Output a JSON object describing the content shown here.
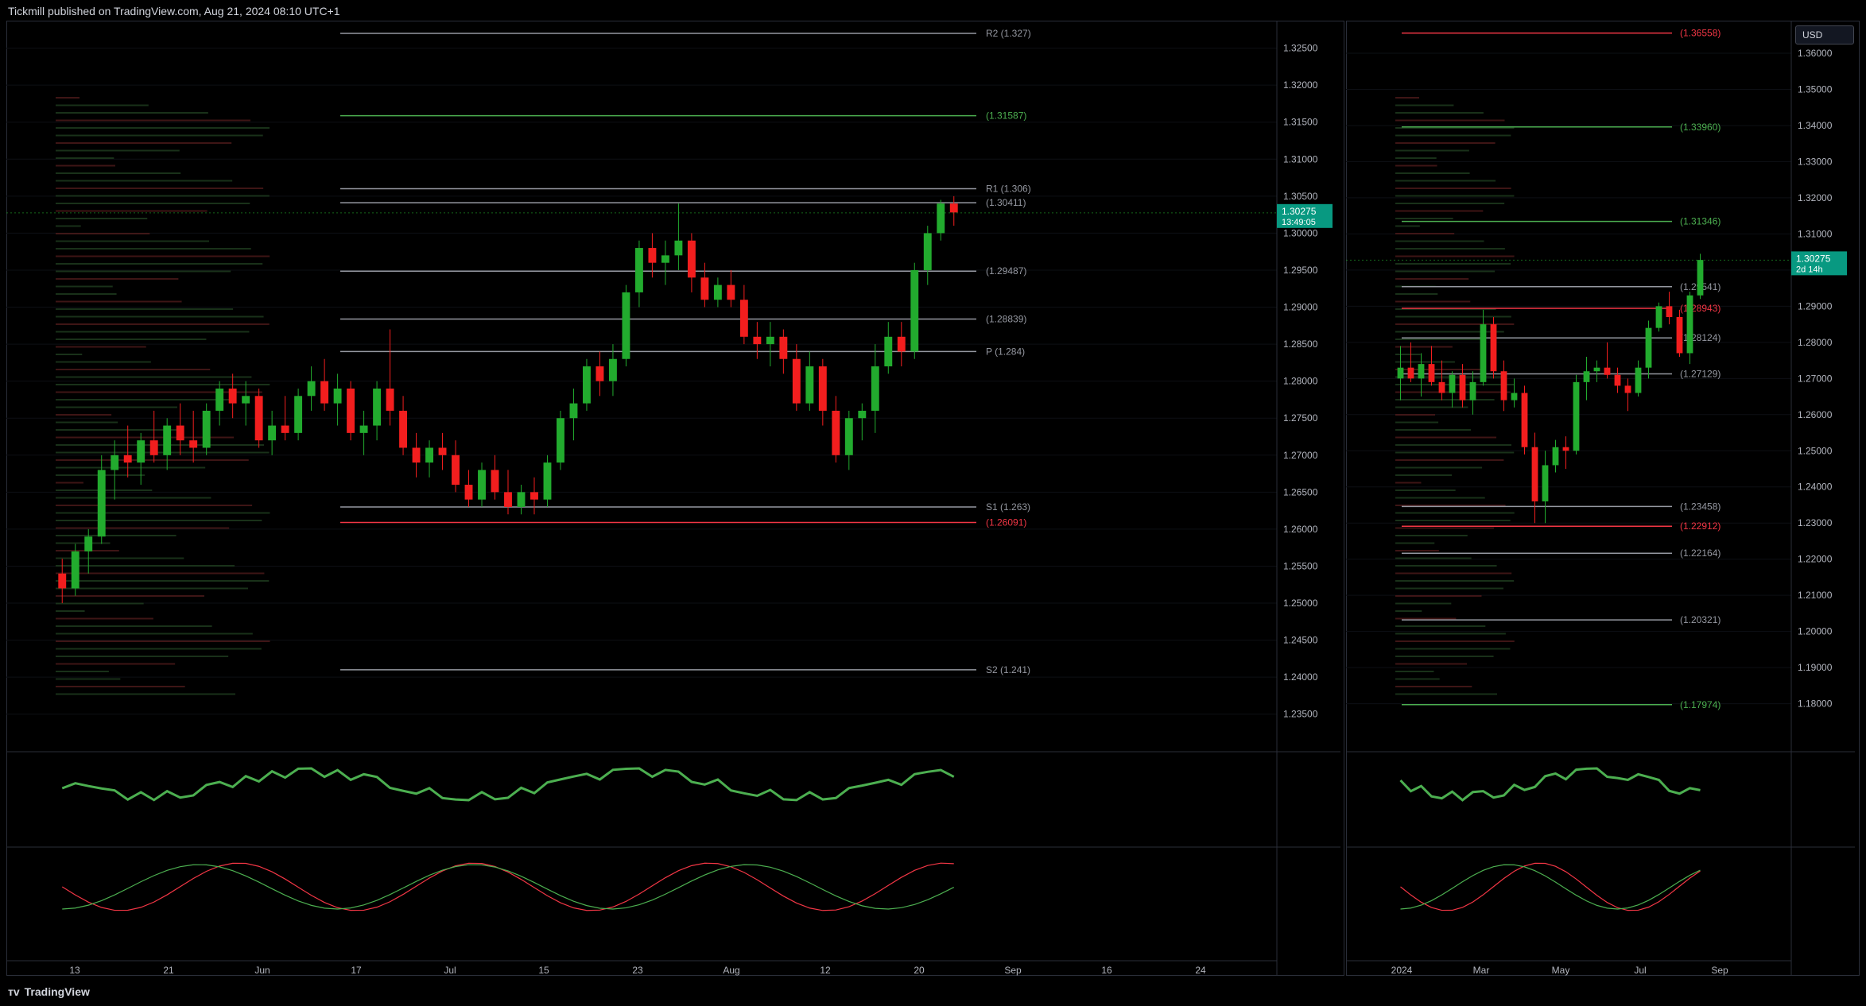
{
  "header": {
    "text": "Tickmill published on TradingView.com, Aug 21, 2024 08:10 UTC+1"
  },
  "footer": {
    "brand": "TradingView"
  },
  "currency_button": "USD",
  "colors": {
    "up": "#22ab2e",
    "down": "#f21e1e",
    "grid": "#1e222d",
    "axis_text": "#b2b5be",
    "green_line": "#4caf50",
    "red_line": "#f23645",
    "orange": "#ff9800",
    "blue": "#2962ff",
    "purple": "#9c27b0"
  },
  "chart_data": [
    {
      "type": "candlestick",
      "panel": "left-daily",
      "y_axis_ticks": [
        "1.32500",
        "1.32000",
        "1.31500",
        "1.31000",
        "1.30500",
        "1.30000",
        "1.29500",
        "1.29000",
        "1.28500",
        "1.28000",
        "1.27500",
        "1.27000",
        "1.26500",
        "1.26000",
        "1.25500",
        "1.25000",
        "1.24500",
        "1.24000",
        "1.23500"
      ],
      "ylim": [
        1.2325,
        1.327
      ],
      "x_axis_ticks": [
        "13",
        "21",
        "Jun",
        "17",
        "Jul",
        "15",
        "23",
        "Aug",
        "12",
        "20",
        "Sep",
        "16",
        "24"
      ],
      "last_price": "1.30275",
      "countdown": "13:49:05",
      "levels": [
        {
          "label": "(1.31587)",
          "value": 1.31587,
          "color": "#4caf50"
        },
        {
          "label": "R1 (1.306)",
          "value": 1.306,
          "color": "#9598a1"
        },
        {
          "label": "(1.30411)",
          "value": 1.30411,
          "color": "#9598a1"
        },
        {
          "label": "(1.29487)",
          "value": 1.29487,
          "color": "#9598a1"
        },
        {
          "label": "(1.28839)",
          "value": 1.28839,
          "color": "#9598a1"
        },
        {
          "label": "P (1.284)",
          "value": 1.284,
          "color": "#9598a1"
        },
        {
          "label": "S1 (1.263)",
          "value": 1.263,
          "color": "#9598a1"
        },
        {
          "label": "(1.26091)",
          "value": 1.26091,
          "color": "#f23645"
        },
        {
          "label": "S2 (1.241)",
          "value": 1.241,
          "color": "#9598a1"
        },
        {
          "label": "R2 (1.327)",
          "value": 1.327,
          "color": "#9598a1"
        }
      ],
      "candles": [
        [
          1.254,
          1.256,
          1.25,
          1.252
        ],
        [
          1.252,
          1.258,
          1.251,
          1.257
        ],
        [
          1.257,
          1.26,
          1.254,
          1.259
        ],
        [
          1.259,
          1.27,
          1.258,
          1.268
        ],
        [
          1.268,
          1.272,
          1.264,
          1.27
        ],
        [
          1.27,
          1.274,
          1.267,
          1.269
        ],
        [
          1.269,
          1.273,
          1.266,
          1.272
        ],
        [
          1.272,
          1.276,
          1.269,
          1.27
        ],
        [
          1.27,
          1.275,
          1.268,
          1.274
        ],
        [
          1.274,
          1.277,
          1.27,
          1.272
        ],
        [
          1.272,
          1.276,
          1.269,
          1.271
        ],
        [
          1.271,
          1.277,
          1.27,
          1.276
        ],
        [
          1.276,
          1.28,
          1.274,
          1.279
        ],
        [
          1.279,
          1.281,
          1.275,
          1.277
        ],
        [
          1.277,
          1.28,
          1.274,
          1.278
        ],
        [
          1.278,
          1.279,
          1.271,
          1.272
        ],
        [
          1.272,
          1.276,
          1.27,
          1.274
        ],
        [
          1.274,
          1.278,
          1.272,
          1.273
        ],
        [
          1.273,
          1.279,
          1.272,
          1.278
        ],
        [
          1.278,
          1.282,
          1.276,
          1.28
        ],
        [
          1.28,
          1.283,
          1.276,
          1.277
        ],
        [
          1.277,
          1.281,
          1.274,
          1.279
        ],
        [
          1.279,
          1.28,
          1.272,
          1.273
        ],
        [
          1.273,
          1.276,
          1.27,
          1.274
        ],
        [
          1.274,
          1.28,
          1.272,
          1.279
        ],
        [
          1.279,
          1.287,
          1.274,
          1.276
        ],
        [
          1.276,
          1.278,
          1.27,
          1.271
        ],
        [
          1.271,
          1.273,
          1.267,
          1.269
        ],
        [
          1.269,
          1.272,
          1.267,
          1.271
        ],
        [
          1.271,
          1.273,
          1.268,
          1.27
        ],
        [
          1.27,
          1.272,
          1.265,
          1.266
        ],
        [
          1.266,
          1.268,
          1.263,
          1.264
        ],
        [
          1.264,
          1.269,
          1.263,
          1.268
        ],
        [
          1.268,
          1.27,
          1.264,
          1.265
        ],
        [
          1.265,
          1.268,
          1.262,
          1.263
        ],
        [
          1.263,
          1.266,
          1.262,
          1.265
        ],
        [
          1.265,
          1.267,
          1.262,
          1.264
        ],
        [
          1.264,
          1.27,
          1.263,
          1.269
        ],
        [
          1.269,
          1.276,
          1.268,
          1.275
        ],
        [
          1.275,
          1.279,
          1.272,
          1.277
        ],
        [
          1.277,
          1.283,
          1.276,
          1.282
        ],
        [
          1.282,
          1.284,
          1.278,
          1.28
        ],
        [
          1.28,
          1.285,
          1.278,
          1.283
        ],
        [
          1.283,
          1.293,
          1.282,
          1.292
        ],
        [
          1.292,
          1.299,
          1.29,
          1.298
        ],
        [
          1.298,
          1.3,
          1.294,
          1.296
        ],
        [
          1.296,
          1.299,
          1.293,
          1.297
        ],
        [
          1.297,
          1.304,
          1.295,
          1.299
        ],
        [
          1.299,
          1.3,
          1.292,
          1.294
        ],
        [
          1.294,
          1.296,
          1.29,
          1.291
        ],
        [
          1.291,
          1.294,
          1.29,
          1.293
        ],
        [
          1.293,
          1.295,
          1.29,
          1.291
        ],
        [
          1.291,
          1.293,
          1.285,
          1.286
        ],
        [
          1.286,
          1.288,
          1.283,
          1.285
        ],
        [
          1.285,
          1.288,
          1.282,
          1.286
        ],
        [
          1.286,
          1.287,
          1.281,
          1.283
        ],
        [
          1.283,
          1.285,
          1.276,
          1.277
        ],
        [
          1.277,
          1.284,
          1.276,
          1.282
        ],
        [
          1.282,
          1.283,
          1.274,
          1.276
        ],
        [
          1.276,
          1.278,
          1.269,
          1.27
        ],
        [
          1.27,
          1.276,
          1.268,
          1.275
        ],
        [
          1.275,
          1.277,
          1.272,
          1.276
        ],
        [
          1.276,
          1.285,
          1.273,
          1.282
        ],
        [
          1.282,
          1.288,
          1.281,
          1.286
        ],
        [
          1.286,
          1.288,
          1.282,
          1.284
        ],
        [
          1.284,
          1.296,
          1.283,
          1.295
        ],
        [
          1.295,
          1.301,
          1.293,
          1.3
        ],
        [
          1.3,
          1.3045,
          1.299,
          1.304
        ],
        [
          1.304,
          1.305,
          1.301,
          1.3028
        ]
      ]
    },
    {
      "type": "candlestick",
      "panel": "right-weekly",
      "y_axis_ticks": [
        "1.36000",
        "1.35000",
        "1.34000",
        "1.33000",
        "1.32000",
        "1.31000",
        "1.30000",
        "1.29000",
        "1.28000",
        "1.27000",
        "1.26000",
        "1.25000",
        "1.24000",
        "1.23000",
        "1.22000",
        "1.21000",
        "1.20000",
        "1.19000",
        "1.18000"
      ],
      "ylim": [
        1.172,
        1.3655
      ],
      "x_axis_ticks": [
        "2024",
        "Mar",
        "May",
        "Jul",
        "Sep"
      ],
      "last_price": "1.30275",
      "countdown": "2d 14h",
      "levels": [
        {
          "label": "(1.36558)",
          "value": 1.36558,
          "color": "#f23645"
        },
        {
          "label": "(1.33960)",
          "value": 1.3396,
          "color": "#4caf50"
        },
        {
          "label": "(1.31346)",
          "value": 1.31346,
          "color": "#4caf50"
        },
        {
          "label": "(1.29541)",
          "value": 1.29541,
          "color": "#9598a1"
        },
        {
          "label": "(1.28943)",
          "value": 1.28943,
          "color": "#f23645"
        },
        {
          "label": "(1.28124)",
          "value": 1.28124,
          "color": "#9598a1"
        },
        {
          "label": "(1.27129)",
          "value": 1.27129,
          "color": "#9598a1"
        },
        {
          "label": "(1.23458)",
          "value": 1.23458,
          "color": "#9598a1"
        },
        {
          "label": "(1.22912)",
          "value": 1.22912,
          "color": "#f23645"
        },
        {
          "label": "(1.22164)",
          "value": 1.22164,
          "color": "#9598a1"
        },
        {
          "label": "(1.20321)",
          "value": 1.20321,
          "color": "#9598a1"
        },
        {
          "label": "(1.17974)",
          "value": 1.17974,
          "color": "#4caf50"
        }
      ],
      "candles": [
        [
          1.27,
          1.279,
          1.264,
          1.273
        ],
        [
          1.273,
          1.28,
          1.269,
          1.27
        ],
        [
          1.27,
          1.277,
          1.265,
          1.274
        ],
        [
          1.274,
          1.279,
          1.268,
          1.269
        ],
        [
          1.269,
          1.275,
          1.264,
          1.266
        ],
        [
          1.266,
          1.272,
          1.262,
          1.271
        ],
        [
          1.271,
          1.274,
          1.262,
          1.264
        ],
        [
          1.264,
          1.272,
          1.26,
          1.269
        ],
        [
          1.269,
          1.289,
          1.268,
          1.285
        ],
        [
          1.285,
          1.287,
          1.27,
          1.272
        ],
        [
          1.272,
          1.275,
          1.261,
          1.264
        ],
        [
          1.264,
          1.27,
          1.262,
          1.266
        ],
        [
          1.266,
          1.268,
          1.249,
          1.251
        ],
        [
          1.251,
          1.255,
          1.23,
          1.236
        ],
        [
          1.236,
          1.25,
          1.23,
          1.246
        ],
        [
          1.246,
          1.253,
          1.244,
          1.251
        ],
        [
          1.251,
          1.254,
          1.245,
          1.25
        ],
        [
          1.25,
          1.271,
          1.249,
          1.269
        ],
        [
          1.269,
          1.276,
          1.264,
          1.272
        ],
        [
          1.272,
          1.275,
          1.269,
          1.273
        ],
        [
          1.273,
          1.28,
          1.27,
          1.271
        ],
        [
          1.271,
          1.273,
          1.266,
          1.268
        ],
        [
          1.268,
          1.27,
          1.261,
          1.266
        ],
        [
          1.266,
          1.275,
          1.265,
          1.273
        ],
        [
          1.273,
          1.286,
          1.27,
          1.284
        ],
        [
          1.284,
          1.291,
          1.283,
          1.29
        ],
        [
          1.29,
          1.294,
          1.285,
          1.287
        ],
        [
          1.287,
          1.289,
          1.276,
          1.277
        ],
        [
          1.277,
          1.294,
          1.274,
          1.293
        ],
        [
          1.293,
          1.3045,
          1.292,
          1.3028
        ]
      ]
    }
  ]
}
